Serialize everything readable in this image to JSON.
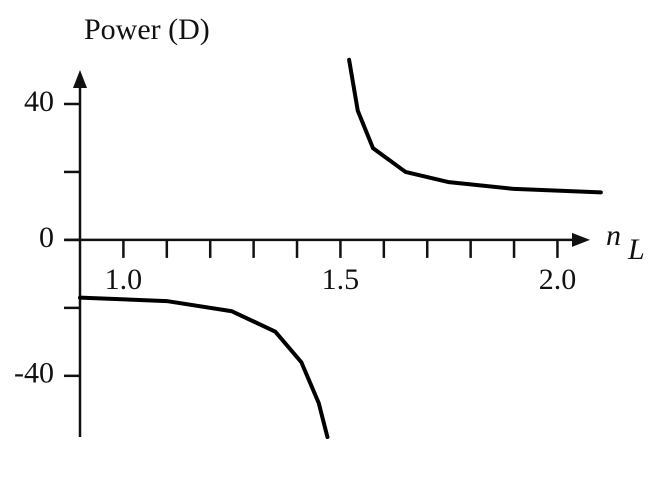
{
  "chart_data": {
    "type": "line",
    "y_label": "Power (D)",
    "x_label": "n",
    "x_label_subscript": "L",
    "x": [
      0.9,
      1.1,
      1.25,
      1.35,
      1.41,
      1.45,
      1.47,
      1.5,
      1.52,
      1.54,
      1.575,
      1.65,
      1.75,
      1.9,
      2.1
    ],
    "series": [
      {
        "color": "#000000",
        "values": [
          -17,
          -18,
          -21,
          -27,
          -36,
          -48,
          -58,
          null,
          53,
          38,
          27,
          20,
          17,
          15,
          14
        ]
      }
    ],
    "xlim": [
      0.9,
      2.075
    ],
    "ylim": [
      -58,
      50
    ],
    "xticks": [
      {
        "value": 1,
        "label": "1.0"
      },
      1.5,
      {
        "value": 2,
        "label": "2.0"
      }
    ],
    "xminorticks": [
      1.1,
      1.2,
      1.3,
      1.4,
      1.6,
      1.7,
      1.8,
      1.9
    ],
    "yticks": [
      -40,
      0,
      40
    ],
    "yminorticks": [
      -20,
      20
    ]
  }
}
